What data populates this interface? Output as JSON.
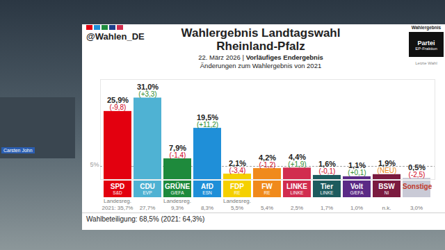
{
  "chart_data": {
    "type": "bar",
    "title": "Wahlergebnis Landtagswahl\nRheinland-Pfalz",
    "subtitle": [
      "22. März 2026 | ",
      "Vorläufiges Endergebnis"
    ],
    "subtitle2": "Änderungen zum Wahlergebnis von 2021",
    "source": "@Wahlen_DE",
    "presenter": "Carsten John",
    "key_box": {
      "result": "Wahlergebnis",
      "party": "Partei",
      "group": "EP-Fraktion",
      "previous": "Letzte Wahl"
    },
    "footer": "Wahlbeteiligung: 68,5% (2021: 64,3%)",
    "categories": [
      "SPD",
      "CDU",
      "GRÜNE",
      "AfD",
      "FDP",
      "FW",
      "LINKE",
      "Tier",
      "Volt",
      "BSW",
      "Sonstige"
    ],
    "groups": [
      "S&D",
      "EVP",
      "G/EFA",
      "ESN",
      "RE",
      "RE",
      "LINKE",
      "LINKE",
      "G/EFA",
      "NI",
      null
    ],
    "values": [
      25.9,
      31.0,
      7.9,
      19.5,
      2.1,
      4.2,
      4.4,
      1.6,
      1.1,
      1.9,
      0.5
    ],
    "value_labels": [
      "25,9%",
      "31,0%",
      "7,9%",
      "19,5%",
      "2,1%",
      "4,2%",
      "4,4%",
      "1,6%",
      "1,1%",
      "1,9%",
      "0,5%"
    ],
    "changes": [
      -9.8,
      3.3,
      -1.4,
      11.2,
      -3.4,
      -1.2,
      1.9,
      -0.1,
      0.1,
      null,
      -2.5
    ],
    "change_labels": [
      "(-9,8)",
      "(+3,3)",
      "(-1,4)",
      "(+11,2)",
      "(-3,4)",
      "(-1,2)",
      "(+1,9)",
      "(-0,1)",
      "(+0,1)",
      "(NEU)",
      "(-2,5)"
    ],
    "notes": [
      "Landesreg.",
      null,
      "Landesreg.",
      null,
      "Landesreg.",
      null,
      null,
      null,
      null,
      null,
      null
    ],
    "previous_labels": [
      "2021: 35,7%",
      "27,7%",
      "9,3%",
      "8,3%",
      "5,5%",
      "5,4%",
      "2,5%",
      "1,7%",
      "1,0%",
      "n.k.",
      "3,0%"
    ],
    "colors": [
      "#e3000f",
      "#4fb2d3",
      "#1e8a3c",
      "#1f8fd8",
      "#f5d000",
      "#f08a1c",
      "#d12d4f",
      "#1d5b5e",
      "#5b2a86",
      "#7b1b3f",
      "#c9cad6"
    ],
    "ylim": [
      0,
      38
    ],
    "yticks": [],
    "tick_labels": false,
    "data_labels": true,
    "annotations": [
      {
        "value": 5,
        "label": "5%"
      }
    ]
  }
}
